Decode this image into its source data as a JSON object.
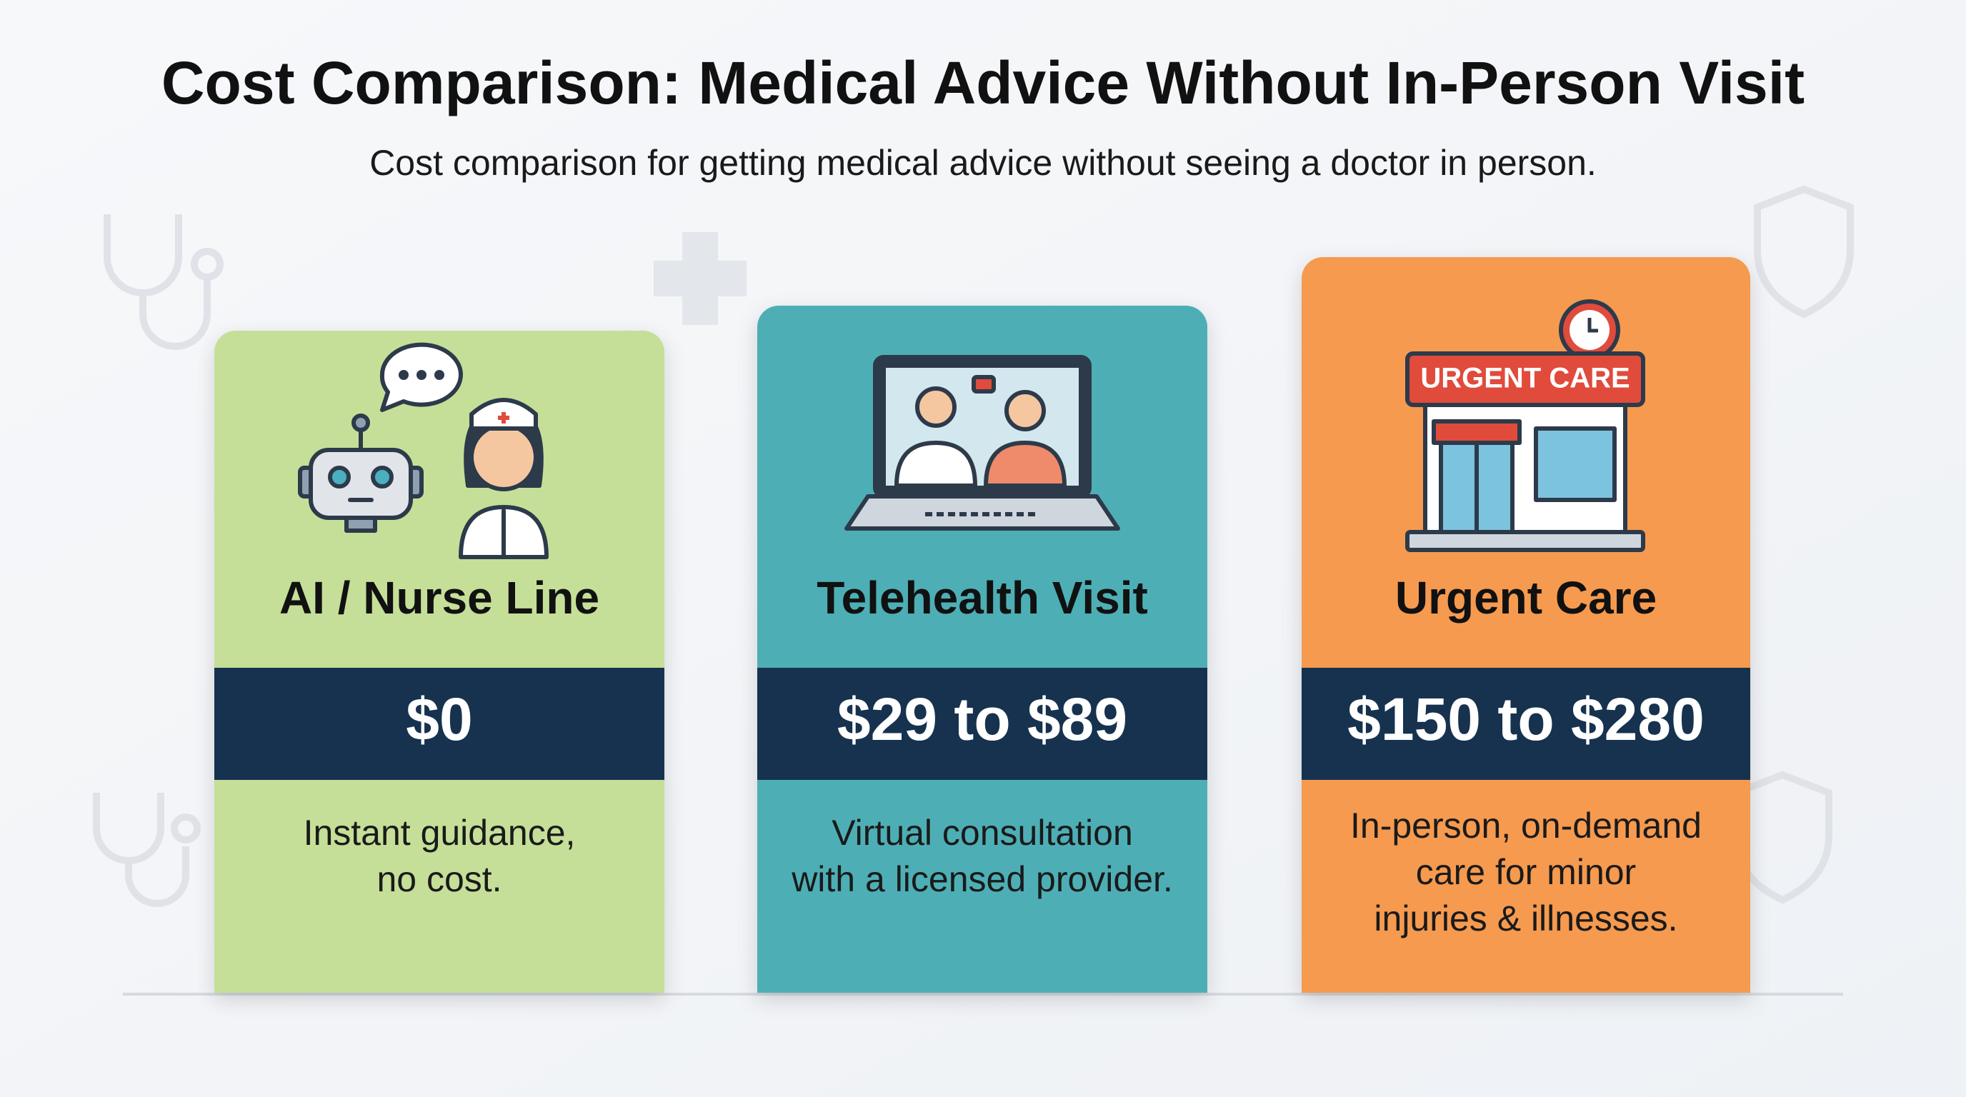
{
  "header": {
    "title": "Cost Comparison: Medical Advice Without In-Person Visit",
    "subtitle": "Cost comparison for getting medical advice without seeing a doctor in person."
  },
  "cards": [
    {
      "title": "AI / Nurse Line",
      "price": "$0",
      "description": [
        "Instant guidance,",
        "no cost."
      ]
    },
    {
      "title": "Telehealth Visit",
      "price": "$29 to $89",
      "description": [
        "Virtual consultation",
        "with a licensed provider."
      ]
    },
    {
      "title": "Urgent Care",
      "price": "$150 to $280",
      "icon_sign": "URGENT CARE",
      "description": [
        "In-person, on-demand",
        "care for minor",
        "injuries & illnesses."
      ]
    }
  ]
}
